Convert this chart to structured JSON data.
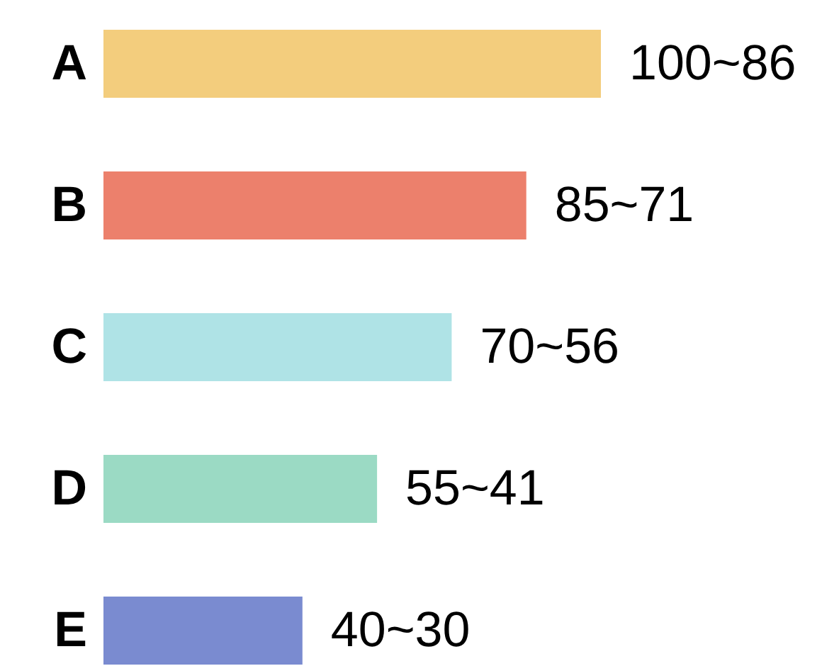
{
  "chart_data": {
    "type": "bar",
    "orientation": "horizontal",
    "categories": [
      "A",
      "B",
      "C",
      "D",
      "E"
    ],
    "values": [
      100,
      85,
      70,
      55,
      40
    ],
    "colors": [
      "#f3cd7d",
      "#ec806c",
      "#afe3e6",
      "#9bdac4",
      "#7a8bd0"
    ],
    "value_labels": [
      "100~86",
      "85~71",
      "70~56",
      "55~41",
      "40~30"
    ]
  }
}
